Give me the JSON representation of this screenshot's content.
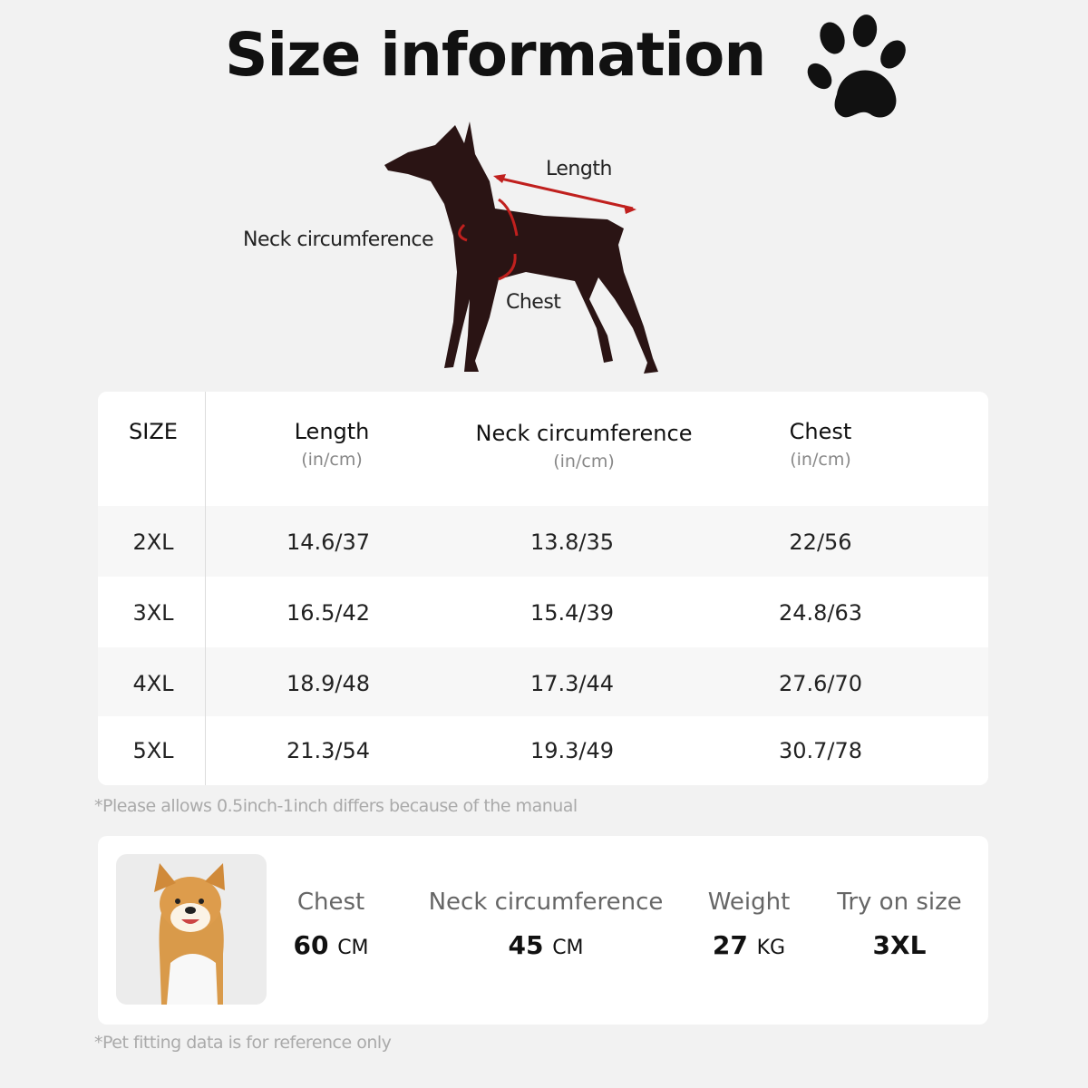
{
  "title": "Size information",
  "diagram": {
    "length": "Length",
    "neck": "Neck circumference",
    "chest": "Chest",
    "arrow_color": "#c0201e"
  },
  "table": {
    "headers": [
      {
        "label": "SIZE",
        "unit": ""
      },
      {
        "label": "Length",
        "unit": "(in/cm)"
      },
      {
        "label": "Neck circumference",
        "unit": "(in/cm)"
      },
      {
        "label": "Chest",
        "unit": "(in/cm)"
      }
    ],
    "rows": [
      [
        "2XL",
        "14.6/37",
        "13.8/35",
        "22/56"
      ],
      [
        "3XL",
        "16.5/42",
        "15.4/39",
        "24.8/63"
      ],
      [
        "4XL",
        "18.9/48",
        "17.3/44",
        "27.6/70"
      ],
      [
        "5XL",
        "21.3/54",
        "19.3/49",
        "30.7/78"
      ]
    ]
  },
  "table_note": "*Please allows 0.5inch-1inch differs because of the  manual",
  "fitting": {
    "chest": {
      "label": "Chest",
      "value": "60",
      "unit": "CM"
    },
    "neck": {
      "label": "Neck circumference",
      "value": "45",
      "unit": "CM"
    },
    "weight": {
      "label": "Weight",
      "value": "27",
      "unit": "KG"
    },
    "size": {
      "label": "Try on size",
      "value": "3XL"
    }
  },
  "fitting_note": "*Pet fitting data is for reference only"
}
